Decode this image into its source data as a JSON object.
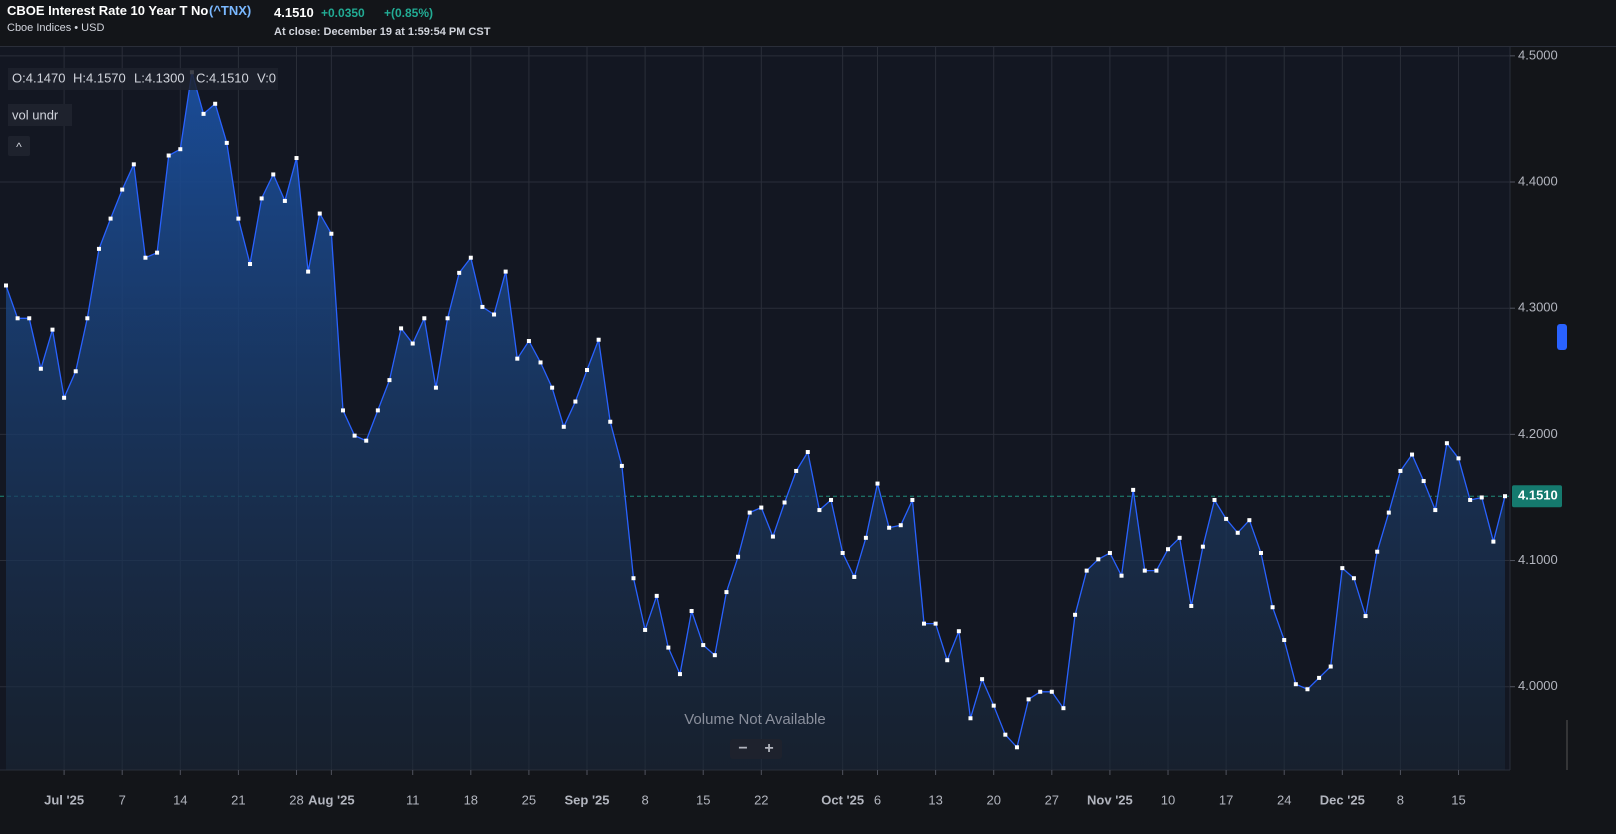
{
  "header": {
    "name": "CBOE Interest Rate 10 Year T No",
    "symbol": "(^TNX)",
    "subtitle": "Cboe Indices • USD",
    "price": "4.1510",
    "change": "+0.0350",
    "change_pct": "+(0.85%)",
    "close_time": "At close: December 19 at 1:59:54 PM CST"
  },
  "legend": {
    "open": "O:4.1470",
    "high": "H:4.1570",
    "low": "L:4.1300",
    "close": "C:4.1510",
    "volume": "V:0",
    "study": "vol undr",
    "collapse": "^"
  },
  "volume_note": {
    "text": "Volume Not Available",
    "zoom_out": "−",
    "zoom_in": "+"
  },
  "chart_data": {
    "type": "area",
    "color": "#2962ff",
    "grid": true,
    "ylim": [
      3.934,
      4.507
    ],
    "yticks": [
      {
        "value": 4.0,
        "label": "4.0000"
      },
      {
        "value": 4.1,
        "label": "4.1000"
      },
      {
        "value": 4.2,
        "label": "4.2000"
      },
      {
        "value": 4.3,
        "label": "4.3000"
      },
      {
        "value": 4.4,
        "label": "4.4000"
      },
      {
        "value": 4.5,
        "label": "4.5000"
      }
    ],
    "categories": [
      null,
      null,
      null,
      null,
      null,
      "Jul '25",
      null,
      null,
      null,
      null,
      "7",
      null,
      null,
      null,
      null,
      "14",
      null,
      null,
      null,
      null,
      "21",
      null,
      null,
      null,
      null,
      "28",
      null,
      null,
      "Aug '25",
      null,
      null,
      null,
      null,
      null,
      null,
      "11",
      null,
      null,
      null,
      null,
      "18",
      null,
      null,
      null,
      null,
      "25",
      null,
      null,
      null,
      null,
      "Sep '25",
      null,
      null,
      null,
      null,
      "8",
      null,
      null,
      null,
      null,
      "15",
      null,
      null,
      null,
      null,
      "22",
      null,
      null,
      null,
      null,
      null,
      null,
      "Oct '25",
      null,
      null,
      "6",
      null,
      null,
      null,
      null,
      "13",
      null,
      null,
      null,
      null,
      "20",
      null,
      null,
      null,
      null,
      "27",
      null,
      null,
      null,
      null,
      "Nov '25",
      null,
      null,
      null,
      null,
      "10",
      null,
      null,
      null,
      null,
      "17",
      null,
      null,
      null,
      null,
      "24",
      null,
      null,
      null,
      null,
      "Dec '25",
      null,
      null,
      null,
      null,
      "8",
      null,
      null,
      null,
      null,
      "15",
      null,
      null,
      null,
      null
    ],
    "series": [
      {
        "name": "^TNX",
        "values": [
          4.318,
          4.292,
          4.292,
          4.252,
          4.283,
          4.229,
          4.25,
          4.292,
          4.347,
          4.371,
          4.394,
          4.414,
          4.34,
          4.344,
          4.421,
          4.426,
          4.487,
          4.454,
          4.462,
          4.431,
          4.371,
          4.335,
          4.387,
          4.406,
          4.385,
          4.419,
          4.329,
          4.375,
          4.359,
          4.219,
          4.199,
          4.195,
          4.219,
          4.243,
          4.284,
          4.272,
          4.292,
          4.237,
          4.292,
          4.328,
          4.34,
          4.301,
          4.295,
          4.329,
          4.26,
          4.274,
          4.257,
          4.237,
          4.206,
          4.226,
          4.251,
          4.275,
          4.21,
          4.175,
          4.086,
          4.045,
          4.072,
          4.031,
          4.01,
          4.06,
          4.033,
          4.025,
          4.075,
          4.103,
          4.138,
          4.142,
          4.119,
          4.146,
          4.171,
          4.186,
          4.14,
          4.148,
          4.106,
          4.087,
          4.118,
          4.161,
          4.126,
          4.128,
          4.148,
          4.05,
          4.05,
          4.021,
          4.044,
          3.975,
          4.006,
          3.985,
          3.962,
          3.952,
          3.99,
          3.996,
          3.996,
          3.983,
          4.057,
          4.092,
          4.101,
          4.106,
          4.088,
          4.156,
          4.092,
          4.092,
          4.109,
          4.118,
          4.064,
          4.111,
          4.148,
          4.133,
          4.122,
          4.132,
          4.106,
          4.063,
          4.037,
          4.002,
          3.998,
          4.007,
          4.016,
          4.094,
          4.086,
          4.056,
          4.107,
          4.138,
          4.171,
          4.184,
          4.163,
          4.14,
          4.193,
          4.181,
          4.148,
          4.15,
          4.115,
          4.151
        ]
      }
    ]
  }
}
